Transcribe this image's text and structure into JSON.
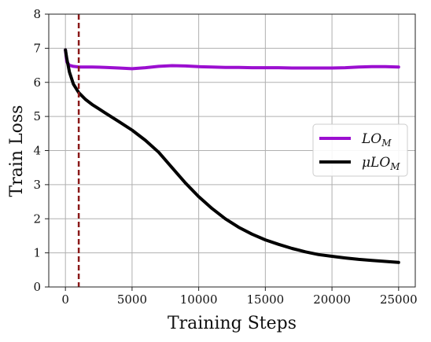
{
  "chart_data": {
    "type": "line",
    "xlabel": "Training Steps",
    "ylabel": "Train Loss",
    "xlim": [
      -1250,
      26250
    ],
    "ylim": [
      0,
      8
    ],
    "xticks": [
      0,
      5000,
      10000,
      15000,
      20000,
      25000
    ],
    "yticks": [
      0,
      1,
      2,
      3,
      4,
      5,
      6,
      7,
      8
    ],
    "grid": true,
    "legend_position": "center-right",
    "vline": {
      "x": 1000,
      "color": "#8b1a1a",
      "style": "dashed"
    },
    "series": [
      {
        "name_base": "LO",
        "name_sub": "M",
        "color": "#9b0fd0",
        "x": [
          0,
          100,
          300,
          600,
          1000,
          1500,
          2000,
          3000,
          4000,
          5000,
          6000,
          7000,
          8000,
          9000,
          10000,
          11000,
          12000,
          13000,
          14000,
          15000,
          16000,
          17000,
          18000,
          19000,
          20000,
          21000,
          22000,
          23000,
          24000,
          25000
        ],
        "y": [
          6.95,
          6.6,
          6.5,
          6.47,
          6.45,
          6.45,
          6.45,
          6.44,
          6.42,
          6.4,
          6.43,
          6.47,
          6.49,
          6.48,
          6.46,
          6.45,
          6.44,
          6.44,
          6.43,
          6.43,
          6.43,
          6.42,
          6.42,
          6.42,
          6.42,
          6.43,
          6.45,
          6.46,
          6.46,
          6.45
        ]
      },
      {
        "name_base": "μLO",
        "name_sub": "M",
        "color": "#000000",
        "x": [
          0,
          100,
          300,
          600,
          1000,
          1500,
          2000,
          3000,
          4000,
          5000,
          6000,
          7000,
          8000,
          9000,
          10000,
          11000,
          12000,
          13000,
          14000,
          15000,
          16000,
          17000,
          18000,
          19000,
          20000,
          21000,
          22000,
          23000,
          24000,
          25000
        ],
        "y": [
          6.95,
          6.7,
          6.3,
          5.95,
          5.7,
          5.5,
          5.35,
          5.1,
          4.85,
          4.6,
          4.3,
          3.95,
          3.5,
          3.05,
          2.65,
          2.3,
          2.0,
          1.75,
          1.55,
          1.38,
          1.25,
          1.13,
          1.03,
          0.95,
          0.9,
          0.85,
          0.81,
          0.78,
          0.75,
          0.72
        ]
      }
    ]
  }
}
